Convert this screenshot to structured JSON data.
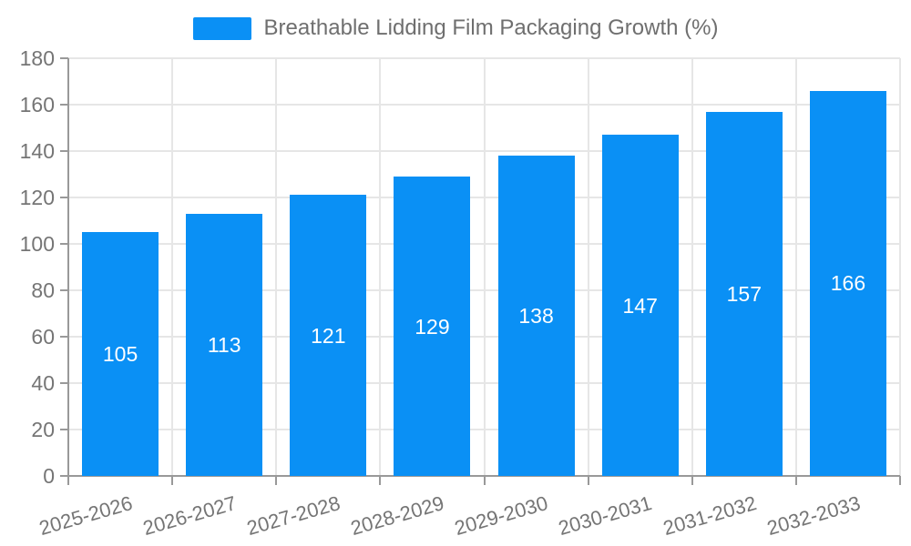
{
  "chart_data": {
    "type": "bar",
    "title": "",
    "legend": {
      "label": "Breathable Lidding Film Packaging Growth (%)",
      "color": "#0a90f5",
      "position": "top-center"
    },
    "categories": [
      "2025-2026",
      "2026-2027",
      "2027-2028",
      "2028-2029",
      "2029-2030",
      "2030-2031",
      "2031-2032",
      "2032-2033"
    ],
    "values": [
      105,
      113,
      121,
      129,
      138,
      147,
      157,
      166
    ],
    "xlabel": "",
    "ylabel": "",
    "ylim": [
      0,
      180
    ],
    "yticks": [
      0,
      20,
      40,
      60,
      80,
      100,
      120,
      140,
      160,
      180
    ],
    "grid": true,
    "x_label_rotation_deg": -16,
    "colors": {
      "bar": "#0a90f5",
      "value_label": "#ffffff",
      "grid_line": "#e6e6e6",
      "axis_line": "#999999",
      "tick_text": "#757575",
      "legend_text": "#6f6f6f"
    }
  }
}
